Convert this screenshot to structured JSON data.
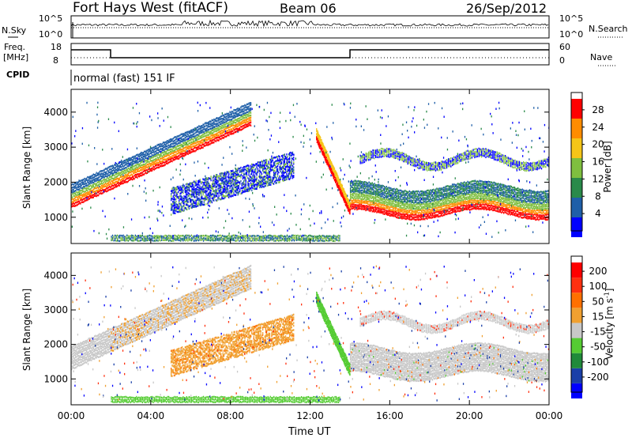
{
  "header": {
    "title": "Fort Hays West (fitACF)",
    "beam": "Beam 06",
    "date": "26/Sep/2012"
  },
  "aux": {
    "nsky_label": "N.Sky",
    "nsearch_label": "N.Search",
    "nsky_ticks": [
      "10^5",
      "10^0"
    ],
    "nsearch_ticks": [
      "10^5",
      "10^0"
    ],
    "freq_label_1": "Freq.",
    "freq_label_2": "[MHz]",
    "freq_ticks": [
      "18",
      "8"
    ],
    "nave_label": "Nave",
    "nave_ticks": [
      "60",
      "0"
    ],
    "cpid_label": "CPID",
    "cpid_text": "normal (fast) 151 IF"
  },
  "chart_data": [
    {
      "type": "heatmap",
      "name": "power",
      "ylabel": "Slant Range [km]",
      "yticks": [
        "4000",
        "3000",
        "2000",
        "1000"
      ],
      "colorbar": {
        "label": "Power [dB]",
        "ticks": [
          "28",
          "24",
          "20",
          "16",
          "12",
          "8",
          "4"
        ],
        "colors": [
          "#0000ff",
          "#1f5fa8",
          "#2a8a4a",
          "#7fbf3f",
          "#f5c518",
          "#ff8c00",
          "#ff0000"
        ]
      }
    },
    {
      "type": "heatmap",
      "name": "velocity",
      "ylabel": "Slant Range [km]",
      "yticks": [
        "4000",
        "3000",
        "2000",
        "1000"
      ],
      "colorbar": {
        "label": "Velocity [m s",
        "label_sup": "-1",
        "label_end": "]",
        "ticks": [
          "200",
          "100",
          "50",
          "15",
          "-15",
          "-50",
          "-100",
          "-200"
        ],
        "colors": [
          "#0000ff",
          "#1a3fa8",
          "#208a3a",
          "#55cc33",
          "#c8c8c8",
          "#f0a030",
          "#ff7000",
          "#ff3010",
          "#ff0000"
        ]
      }
    }
  ],
  "xaxis": {
    "label": "Time UT",
    "ticks": [
      "00:00",
      "04:00",
      "08:00",
      "12:00",
      "16:00",
      "20:00",
      "00:00"
    ]
  }
}
